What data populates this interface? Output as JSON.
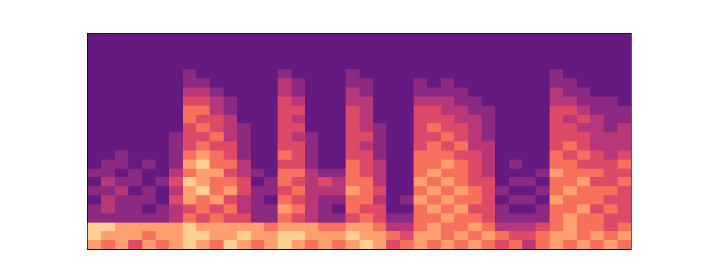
{
  "chart_data": {
    "type": "heatmap",
    "color": "magma",
    "tick_labels": false,
    "grid": false,
    "zlim": [
      0,
      10
    ],
    "cells": [
      [
        8,
        7,
        8,
        6,
        8,
        7,
        8,
        9,
        8,
        7,
        9,
        8,
        7,
        8,
        9,
        8,
        7,
        8,
        7,
        8,
        9,
        8,
        6,
        7,
        8,
        7,
        8,
        7,
        8,
        7,
        6,
        7,
        5,
        7,
        8,
        7,
        8,
        7,
        8,
        7
      ],
      [
        9,
        8,
        8,
        8,
        7,
        8,
        8,
        9,
        9,
        8,
        8,
        9,
        8,
        8,
        9,
        9,
        8,
        8,
        8,
        9,
        8,
        8,
        7,
        6,
        8,
        8,
        7,
        8,
        7,
        8,
        7,
        6,
        6,
        7,
        8,
        8,
        7,
        8,
        7,
        8
      ],
      [
        9,
        9,
        8,
        8,
        8,
        8,
        8,
        9,
        8,
        8,
        8,
        8,
        8,
        7,
        8,
        8,
        8,
        7,
        7,
        8,
        8,
        7,
        5,
        5,
        7,
        8,
        7,
        7,
        8,
        7,
        5,
        5,
        5,
        6,
        7,
        8,
        7,
        7,
        6,
        7
      ],
      [
        4,
        4,
        4,
        4,
        4,
        4,
        5,
        7,
        6,
        7,
        6,
        6,
        4,
        4,
        7,
        6,
        5,
        4,
        4,
        6,
        7,
        6,
        4,
        4,
        7,
        7,
        8,
        7,
        7,
        6,
        4,
        4,
        4,
        4,
        7,
        8,
        7,
        7,
        6,
        6
      ],
      [
        4,
        5,
        4,
        4,
        3,
        4,
        5,
        6,
        7,
        6,
        7,
        5,
        4,
        4,
        8,
        7,
        5,
        4,
        3,
        7,
        6,
        6,
        3,
        3,
        7,
        8,
        7,
        8,
        6,
        6,
        4,
        3,
        3,
        4,
        7,
        7,
        8,
        6,
        7,
        6
      ],
      [
        3,
        5,
        4,
        4,
        4,
        3,
        6,
        8,
        7,
        8,
        6,
        5,
        4,
        3,
        7,
        6,
        5,
        4,
        4,
        7,
        7,
        5,
        3,
        4,
        8,
        7,
        8,
        7,
        7,
        6,
        3,
        4,
        4,
        3,
        8,
        7,
        7,
        7,
        6,
        6
      ],
      [
        4,
        4,
        5,
        3,
        4,
        3,
        5,
        8,
        9,
        7,
        8,
        6,
        4,
        4,
        6,
        7,
        5,
        5,
        5,
        8,
        7,
        6,
        3,
        3,
        7,
        8,
        7,
        8,
        7,
        6,
        4,
        3,
        3,
        4,
        7,
        8,
        7,
        7,
        7,
        6
      ],
      [
        3,
        5,
        4,
        4,
        3,
        4,
        6,
        9,
        8,
        7,
        7,
        6,
        3,
        4,
        7,
        6,
        5,
        6,
        5,
        7,
        7,
        5,
        3,
        3,
        8,
        7,
        8,
        7,
        6,
        6,
        3,
        4,
        4,
        3,
        7,
        7,
        8,
        6,
        6,
        7
      ],
      [
        4,
        4,
        3,
        4,
        3,
        3,
        5,
        7,
        8,
        8,
        6,
        5,
        4,
        3,
        7,
        7,
        5,
        4,
        4,
        7,
        6,
        5,
        3,
        3,
        7,
        8,
        7,
        7,
        6,
        5,
        3,
        3,
        3,
        4,
        8,
        7,
        7,
        7,
        6,
        6
      ],
      [
        3,
        4,
        4,
        3,
        4,
        3,
        4,
        8,
        9,
        7,
        7,
        5,
        3,
        3,
        6,
        6,
        4,
        3,
        3,
        7,
        6,
        5,
        3,
        3,
        7,
        7,
        8,
        7,
        6,
        5,
        3,
        4,
        3,
        3,
        7,
        7,
        6,
        6,
        6,
        7
      ],
      [
        3,
        3,
        4,
        3,
        3,
        3,
        4,
        7,
        8,
        7,
        6,
        4,
        3,
        3,
        7,
        6,
        4,
        3,
        3,
        6,
        6,
        4,
        3,
        3,
        7,
        7,
        7,
        6,
        6,
        5,
        3,
        3,
        3,
        3,
        7,
        6,
        7,
        6,
        5,
        6
      ],
      [
        3,
        3,
        3,
        3,
        3,
        3,
        4,
        6,
        7,
        6,
        6,
        4,
        3,
        3,
        6,
        6,
        4,
        3,
        3,
        6,
        5,
        4,
        3,
        3,
        6,
        7,
        6,
        7,
        5,
        5,
        3,
        3,
        3,
        3,
        6,
        7,
        6,
        5,
        5,
        5
      ],
      [
        3,
        3,
        3,
        3,
        3,
        3,
        4,
        6,
        6,
        7,
        5,
        4,
        3,
        3,
        6,
        5,
        4,
        3,
        3,
        6,
        6,
        4,
        3,
        3,
        6,
        6,
        7,
        6,
        5,
        4,
        3,
        3,
        3,
        3,
        6,
        6,
        6,
        5,
        5,
        5
      ],
      [
        3,
        3,
        3,
        3,
        3,
        3,
        3,
        6,
        7,
        6,
        5,
        4,
        3,
        3,
        6,
        6,
        3,
        3,
        3,
        6,
        5,
        4,
        3,
        3,
        6,
        7,
        6,
        6,
        5,
        4,
        3,
        3,
        3,
        3,
        6,
        6,
        5,
        5,
        4,
        5
      ],
      [
        3,
        3,
        3,
        3,
        3,
        3,
        3,
        7,
        6,
        6,
        5,
        3,
        3,
        3,
        6,
        5,
        3,
        3,
        3,
        6,
        5,
        3,
        3,
        3,
        6,
        6,
        6,
        5,
        5,
        4,
        3,
        3,
        3,
        3,
        6,
        5,
        6,
        5,
        4,
        4
      ],
      [
        3,
        3,
        3,
        3,
        3,
        3,
        3,
        7,
        7,
        5,
        4,
        3,
        3,
        3,
        6,
        6,
        3,
        3,
        3,
        6,
        5,
        3,
        3,
        3,
        6,
        6,
        5,
        5,
        4,
        4,
        3,
        3,
        3,
        3,
        6,
        6,
        5,
        4,
        4,
        4
      ],
      [
        3,
        3,
        3,
        3,
        3,
        3,
        3,
        6,
        6,
        5,
        4,
        3,
        3,
        3,
        6,
        5,
        3,
        3,
        3,
        5,
        5,
        3,
        3,
        3,
        5,
        5,
        5,
        4,
        4,
        3,
        3,
        3,
        3,
        3,
        5,
        5,
        4,
        4,
        4,
        3
      ],
      [
        3,
        3,
        3,
        3,
        3,
        3,
        3,
        5,
        5,
        4,
        3,
        3,
        3,
        3,
        5,
        4,
        3,
        3,
        3,
        5,
        4,
        3,
        3,
        3,
        4,
        4,
        4,
        4,
        3,
        3,
        3,
        3,
        3,
        3,
        5,
        4,
        4,
        3,
        3,
        3
      ],
      [
        3,
        3,
        3,
        3,
        3,
        3,
        3,
        4,
        4,
        3,
        3,
        3,
        3,
        3,
        5,
        4,
        3,
        3,
        3,
        4,
        4,
        3,
        3,
        3,
        4,
        3,
        4,
        3,
        3,
        3,
        3,
        3,
        3,
        3,
        4,
        4,
        3,
        3,
        3,
        3
      ],
      [
        3,
        3,
        3,
        3,
        3,
        3,
        3,
        4,
        3,
        3,
        3,
        3,
        3,
        3,
        4,
        3,
        3,
        3,
        3,
        4,
        3,
        3,
        3,
        3,
        3,
        3,
        3,
        3,
        3,
        3,
        3,
        3,
        3,
        3,
        4,
        3,
        3,
        3,
        3,
        3
      ],
      [
        3,
        3,
        3,
        3,
        3,
        3,
        3,
        3,
        3,
        3,
        3,
        3,
        3,
        3,
        3,
        3,
        3,
        3,
        3,
        3,
        3,
        3,
        3,
        3,
        3,
        3,
        3,
        3,
        3,
        3,
        3,
        3,
        3,
        3,
        3,
        3,
        3,
        3,
        3,
        3
      ],
      [
        3,
        3,
        3,
        3,
        3,
        3,
        3,
        3,
        3,
        3,
        3,
        3,
        3,
        3,
        3,
        3,
        3,
        3,
        3,
        3,
        3,
        3,
        3,
        3,
        3,
        3,
        3,
        3,
        3,
        3,
        3,
        3,
        3,
        3,
        3,
        3,
        3,
        3,
        3,
        3
      ],
      [
        3,
        3,
        3,
        3,
        3,
        3,
        3,
        3,
        3,
        3,
        3,
        3,
        3,
        3,
        3,
        3,
        3,
        3,
        3,
        3,
        3,
        3,
        3,
        3,
        3,
        3,
        3,
        3,
        3,
        3,
        3,
        3,
        3,
        3,
        3,
        3,
        3,
        3,
        3,
        3
      ],
      [
        3,
        3,
        3,
        3,
        3,
        3,
        3,
        3,
        3,
        3,
        3,
        3,
        3,
        3,
        3,
        3,
        3,
        3,
        3,
        3,
        3,
        3,
        3,
        3,
        3,
        3,
        3,
        3,
        3,
        3,
        3,
        3,
        3,
        3,
        3,
        3,
        3,
        3,
        3,
        3
      ]
    ]
  }
}
